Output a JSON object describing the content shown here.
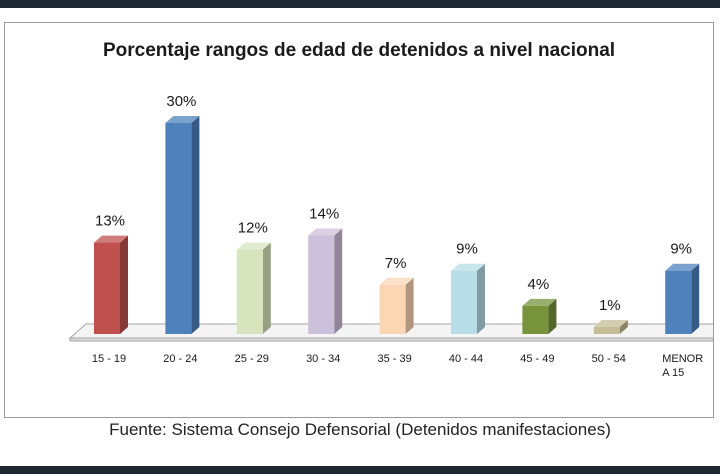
{
  "chart_data": {
    "type": "bar",
    "title": "Porcentaje rangos de edad de detenidos a nivel nacional",
    "categories": [
      "15 - 19",
      "20 - 24",
      "25 - 29",
      "30 - 34",
      "35 - 39",
      "40 - 44",
      "45 - 49",
      "50 - 54",
      "MENOR A 15"
    ],
    "values": [
      13,
      30,
      12,
      14,
      7,
      9,
      4,
      1,
      9
    ],
    "value_labels": [
      "13%",
      "30%",
      "12%",
      "14%",
      "7%",
      "9%",
      "4%",
      "1%",
      "9%"
    ],
    "colors": [
      "#c0504d",
      "#4f81bd",
      "#d7e4bd",
      "#ccc1da",
      "#fcd5b5",
      "#b7dee8",
      "#77933c",
      "#c4bd97",
      "#4f81bd"
    ],
    "ylim": [
      0,
      30
    ],
    "xlabel": "",
    "ylabel": "",
    "grid": false,
    "legend": "none"
  },
  "source_note": "Fuente: Sistema Consejo Defensorial (Detenidos manifestaciones)"
}
